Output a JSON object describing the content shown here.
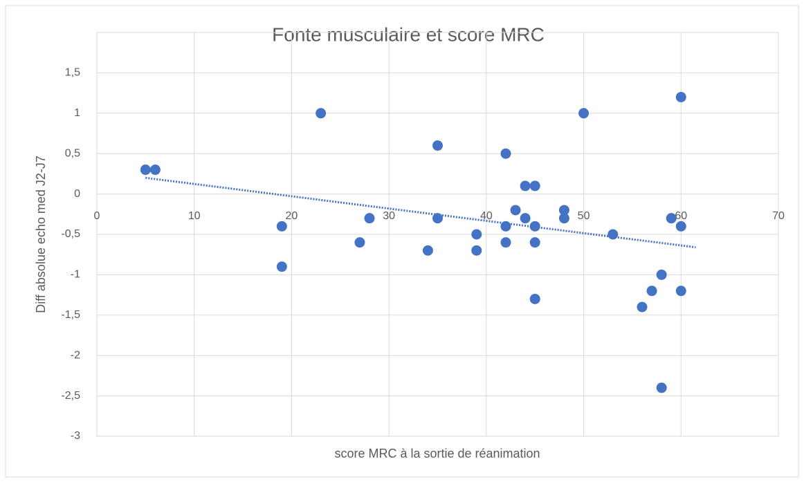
{
  "chart_data": {
    "type": "scatter",
    "title": "Fonte musculaire et score MRC",
    "xlabel": "score MRC à la sortie de réanimation",
    "ylabel": "Diff  absolue echo med J2-J7",
    "color": "#4472c4",
    "x": [
      5,
      6,
      19,
      19,
      23,
      27,
      28,
      34,
      35,
      35,
      39,
      39,
      42,
      42,
      42,
      43,
      44,
      44,
      45,
      45,
      45,
      45,
      48,
      48,
      50,
      53,
      56,
      57,
      58,
      58,
      59,
      60,
      60,
      60
    ],
    "values": [
      0.3,
      0.3,
      -0.4,
      -0.9,
      1,
      -0.6,
      -0.3,
      -0.7,
      0.6,
      -0.3,
      -0.5,
      -0.7,
      0.5,
      -0.4,
      -0.6,
      -0.2,
      0.1,
      -0.3,
      0.1,
      -0.4,
      -0.6,
      -1.3,
      -0.2,
      -0.3,
      1,
      -0.5,
      -1.4,
      -1.2,
      -1,
      -2.4,
      -0.3,
      1.2,
      -0.4,
      -1.2
    ],
    "trendline": {
      "x": [
        5,
        61.5
      ],
      "values": [
        0.2,
        -0.66
      ]
    },
    "xlim": [
      0,
      70
    ],
    "xticks": [
      0,
      10,
      20,
      30,
      40,
      50,
      60,
      70
    ],
    "ylim": [
      -3,
      2
    ],
    "yticks": [
      -3,
      {
        "value": -2.5,
        "label": "-2,5"
      },
      -2,
      {
        "value": -1.5,
        "label": "-1,5"
      },
      -1,
      {
        "value": -0.5,
        "label": "-0,5"
      },
      0,
      {
        "value": 0.5,
        "label": "0,5"
      },
      1,
      {
        "value": 1.5,
        "label": "1,5"
      }
    ],
    "grid": true
  }
}
